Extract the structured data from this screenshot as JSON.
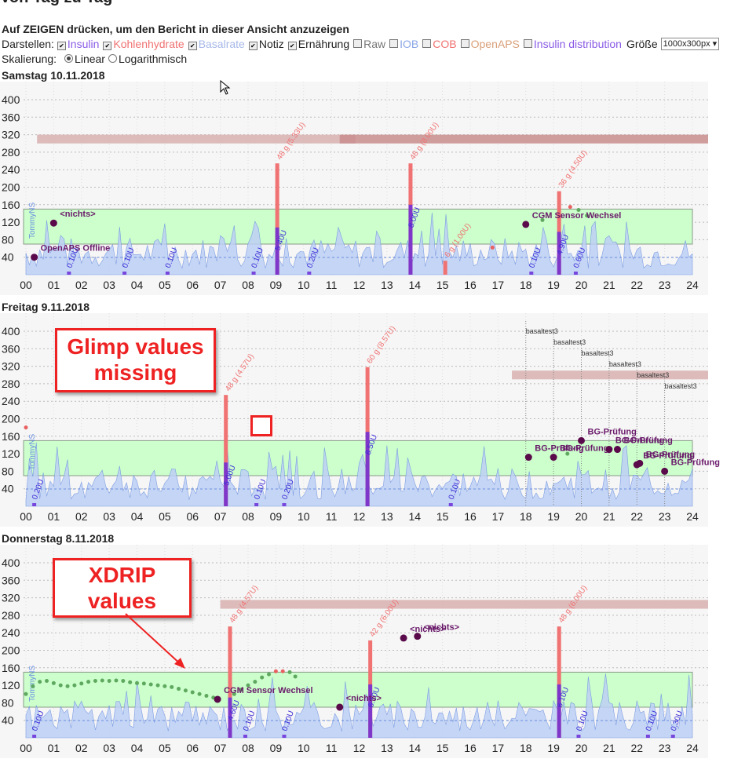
{
  "page": {
    "title": "Von Tag zu Tag",
    "hint": "Auf ZEIGEN drücken, um den Bericht in dieser Ansicht anzuzeigen"
  },
  "controls": {
    "display_label": "Darstellen:",
    "options": [
      {
        "label": "Insulin",
        "checked": true,
        "color": "#8a5ce6"
      },
      {
        "label": "Kohlenhydrate",
        "checked": true,
        "color": "#f07272"
      },
      {
        "label": "Basalrate",
        "checked": true,
        "color": "#a7b8e8"
      },
      {
        "label": "Notiz",
        "checked": true,
        "color": "#222222"
      },
      {
        "label": "Ernährung",
        "checked": true,
        "color": "#222222"
      },
      {
        "label": "Raw",
        "checked": false,
        "color": "#777777"
      },
      {
        "label": "IOB",
        "checked": false,
        "color": "#8aa6e6"
      },
      {
        "label": "COB",
        "checked": false,
        "color": "#f07272"
      },
      {
        "label": "OpenAPS",
        "checked": false,
        "color": "#d9a07a"
      },
      {
        "label": "Insulin distribution",
        "checked": false,
        "color": "#8a5ce6"
      }
    ],
    "size_label": "Größe",
    "size_value": "1000x300px",
    "scale_label": "Skalierung:",
    "scale_linear": "Linear",
    "scale_log": "Logarithmisch"
  },
  "colors": {
    "target_band": "#ccffcc",
    "target_border": "#889988",
    "carbs": "#f07272",
    "insulin": "#6a2dd8",
    "basal_fill": "#bdd0f5",
    "basal_line": "#6a8fe0",
    "temp_target": "#d8b0b0",
    "event": "#5a0a4a",
    "bg_green": "#5fa85f",
    "bg_red": "#e96060",
    "callout": "#ee2222"
  },
  "annotations": {
    "glimp": "Glimp values\nmissing",
    "xdrip": "XDRIP\nvalues"
  },
  "chart_data": [
    {
      "type": "line",
      "title": "Samstag 10.11.2018",
      "ylim": [
        0,
        400
      ],
      "yticks": [
        40,
        80,
        120,
        160,
        200,
        240,
        280,
        320,
        360,
        400
      ],
      "xticks": [
        "00",
        "01",
        "02",
        "03",
        "04",
        "05",
        "06",
        "07",
        "08",
        "09",
        "10",
        "11",
        "12",
        "13",
        "14",
        "15",
        "16",
        "17",
        "18",
        "19",
        "20",
        "21",
        "22",
        "23",
        "24"
      ],
      "target_range": [
        70,
        150
      ],
      "temp_targets": [
        {
          "from": 0.4,
          "to": 11.3,
          "value": 310,
          "shade": "light"
        },
        {
          "from": 11.3,
          "to": 24,
          "value": 310,
          "shade": "dark"
        }
      ],
      "carbs": [
        {
          "hour": 9.05,
          "grams": 48,
          "label": "48 g (5.33U)"
        },
        {
          "hour": 13.85,
          "grams": 48,
          "label": "48 g (8.00U)"
        },
        {
          "hour": 15.1,
          "grams": 6,
          "label": "6 g (1.00U)"
        },
        {
          "hour": 19.2,
          "grams": 36,
          "label": "36 g (4.50U)"
        }
      ],
      "boluses": [
        {
          "hour": 9.05,
          "units": 5.4,
          "label": "5.40U"
        },
        {
          "hour": 13.85,
          "units": 8.0,
          "label": "8.00U"
        },
        {
          "hour": 19.2,
          "units": 4.9,
          "label": "4.90U"
        },
        {
          "hour": 19.8,
          "units": 0.6,
          "label": "0.60U"
        },
        {
          "hour": 1.55,
          "units": 0.1,
          "label": "0.10U"
        },
        {
          "hour": 3.55,
          "units": 0.1,
          "label": "0.10U"
        },
        {
          "hour": 5.1,
          "units": 0.1,
          "label": "0.10U"
        },
        {
          "hour": 8.2,
          "units": 0.1,
          "label": "0.10U"
        },
        {
          "hour": 10.2,
          "units": 0.2,
          "label": "0.20U"
        },
        {
          "hour": 18.2,
          "units": 0.1,
          "label": "0.10U"
        }
      ],
      "events": [
        {
          "hour": 0.3,
          "value": 40,
          "label": "OpenAPS Offline"
        },
        {
          "hour": 1.0,
          "value": 118,
          "label": "<nichts>"
        },
        {
          "hour": 18.0,
          "value": 115,
          "label": "CGM Sensor Wechsel"
        }
      ],
      "bg_points": [
        {
          "hour": 16.8,
          "value": 62
        },
        {
          "hour": 19.6,
          "value": 155
        },
        {
          "hour": 19.9,
          "value": 148
        },
        {
          "hour": 20.2,
          "value": 135
        },
        {
          "hour": 18.6,
          "value": 125
        }
      ],
      "basal_rate_label": "TommyNS",
      "notes": []
    },
    {
      "type": "line",
      "title": "Freitag 9.11.2018",
      "ylim": [
        0,
        400
      ],
      "yticks": [
        40,
        80,
        120,
        160,
        200,
        240,
        280,
        320,
        360,
        400
      ],
      "xticks": [
        "00",
        "01",
        "02",
        "03",
        "04",
        "05",
        "06",
        "07",
        "08",
        "09",
        "10",
        "11",
        "12",
        "13",
        "14",
        "15",
        "16",
        "17",
        "18",
        "19",
        "20",
        "21",
        "22",
        "23",
        "24"
      ],
      "target_range": [
        70,
        150
      ],
      "temp_targets": [
        {
          "from": 17.5,
          "to": 24,
          "value": 300,
          "shade": "light"
        }
      ],
      "carbs": [
        {
          "hour": 7.2,
          "grams": 48,
          "label": "48 g (4.57U)"
        },
        {
          "hour": 12.3,
          "grams": 60,
          "label": "60 g (8.57U)"
        }
      ],
      "boluses": [
        {
          "hour": 7.2,
          "units": 5.0,
          "label": "5.00U"
        },
        {
          "hour": 12.3,
          "units": 8.5,
          "label": "8.50U"
        },
        {
          "hour": 0.3,
          "units": 0.2,
          "label": "0.20U"
        },
        {
          "hour": 8.3,
          "units": 0.1,
          "label": "0.10U"
        },
        {
          "hour": 9.3,
          "units": 0.2,
          "label": "0.20U"
        },
        {
          "hour": 15.3,
          "units": 0.1,
          "label": "0.10U"
        }
      ],
      "events": [
        {
          "hour": 18.1,
          "value": 112,
          "label": "BG-Prüfung"
        },
        {
          "hour": 19.0,
          "value": 112,
          "label": "BG-Prüfung"
        },
        {
          "hour": 20.0,
          "value": 150,
          "label": "BG-Prüfung"
        },
        {
          "hour": 21.0,
          "value": 130,
          "label": "BG-Prüfung"
        },
        {
          "hour": 21.3,
          "value": 130,
          "label": "BG-Prüfung"
        },
        {
          "hour": 22.0,
          "value": 95,
          "label": "BG-Prüfung"
        },
        {
          "hour": 22.1,
          "value": 98,
          "label": "BG-Prüfung"
        },
        {
          "hour": 23.0,
          "value": 80,
          "label": "BG-Prüfung"
        }
      ],
      "bg_points": [
        {
          "hour": 0.0,
          "value": 180
        },
        {
          "hour": 19.5,
          "value": 120
        }
      ],
      "basal_rate_label": "TommyNS",
      "notes": [
        {
          "hour": 18.0,
          "label": "basaltest3"
        },
        {
          "hour": 19.0,
          "label": "basaltest3"
        },
        {
          "hour": 20.0,
          "label": "basaltest3"
        },
        {
          "hour": 21.0,
          "label": "basaltest3"
        },
        {
          "hour": 22.0,
          "label": "basaltest3"
        },
        {
          "hour": 23.0,
          "label": "basaltest3"
        }
      ]
    },
    {
      "type": "line",
      "title": "Donnerstag 8.11.2018",
      "ylim": [
        0,
        400
      ],
      "yticks": [
        40,
        80,
        120,
        160,
        200,
        240,
        280,
        320,
        360,
        400
      ],
      "xticks": [
        "00",
        "01",
        "02",
        "03",
        "04",
        "05",
        "06",
        "07",
        "08",
        "09",
        "10",
        "11",
        "12",
        "13",
        "14",
        "15",
        "16",
        "17",
        "18",
        "19",
        "20",
        "21",
        "22",
        "23",
        "24"
      ],
      "target_range": [
        70,
        150
      ],
      "temp_targets": [
        {
          "from": 7.0,
          "to": 24,
          "value": 305,
          "shade": "light"
        }
      ],
      "carbs": [
        {
          "hour": 7.35,
          "grams": 48,
          "label": "48 g (4.57U)"
        },
        {
          "hour": 12.4,
          "grams": 42,
          "label": "42 g (6.00U)"
        },
        {
          "hour": 19.2,
          "grams": 48,
          "label": "48 g (6.00U)"
        }
      ],
      "boluses": [
        {
          "hour": 7.35,
          "units": 4.6,
          "label": "4.60U"
        },
        {
          "hour": 12.4,
          "units": 6.1,
          "label": "6.10U"
        },
        {
          "hour": 19.2,
          "units": 6.1,
          "label": "6.10U"
        },
        {
          "hour": 0.3,
          "units": 0.1,
          "label": "0.10U"
        },
        {
          "hour": 7.9,
          "units": 0.1,
          "label": "0.10U"
        },
        {
          "hour": 9.3,
          "units": 0.1,
          "label": "0.10U"
        },
        {
          "hour": 19.9,
          "units": 0.1,
          "label": "0.10U"
        },
        {
          "hour": 22.4,
          "units": 0.1,
          "label": "0.10U"
        },
        {
          "hour": 23.3,
          "units": 0.3,
          "label": "0.30U"
        }
      ],
      "events": [
        {
          "hour": 6.9,
          "value": 88,
          "label": "CGM Sensor Wechsel"
        },
        {
          "hour": 11.3,
          "value": 70,
          "label": "<nichts>"
        },
        {
          "hour": 13.6,
          "value": 228,
          "label": "<nichts>"
        },
        {
          "hour": 14.1,
          "value": 232,
          "label": "<nichts>"
        }
      ],
      "bg_points": [
        {
          "hour": 0.0,
          "value": 100
        },
        {
          "hour": 0.25,
          "value": 118
        },
        {
          "hour": 0.5,
          "value": 128
        },
        {
          "hour": 0.75,
          "value": 130
        },
        {
          "hour": 1.0,
          "value": 125
        },
        {
          "hour": 1.25,
          "value": 120
        },
        {
          "hour": 1.5,
          "value": 118
        },
        {
          "hour": 1.75,
          "value": 120
        },
        {
          "hour": 2.0,
          "value": 124
        },
        {
          "hour": 2.25,
          "value": 128
        },
        {
          "hour": 2.5,
          "value": 130
        },
        {
          "hour": 2.75,
          "value": 131
        },
        {
          "hour": 3.0,
          "value": 130
        },
        {
          "hour": 3.25,
          "value": 131
        },
        {
          "hour": 3.5,
          "value": 130
        },
        {
          "hour": 3.75,
          "value": 127
        },
        {
          "hour": 4.0,
          "value": 125
        },
        {
          "hour": 4.25,
          "value": 124
        },
        {
          "hour": 4.5,
          "value": 122
        },
        {
          "hour": 4.75,
          "value": 120
        },
        {
          "hour": 5.0,
          "value": 118
        },
        {
          "hour": 5.25,
          "value": 116
        },
        {
          "hour": 5.5,
          "value": 112
        },
        {
          "hour": 5.75,
          "value": 108
        },
        {
          "hour": 6.0,
          "value": 104
        },
        {
          "hour": 6.25,
          "value": 100
        },
        {
          "hour": 6.5,
          "value": 96
        },
        {
          "hour": 6.75,
          "value": 92
        },
        {
          "hour": 7.5,
          "value": 100
        },
        {
          "hour": 7.75,
          "value": 110
        },
        {
          "hour": 8.0,
          "value": 120
        },
        {
          "hour": 8.25,
          "value": 128
        },
        {
          "hour": 8.5,
          "value": 138
        },
        {
          "hour": 8.75,
          "value": 145
        },
        {
          "hour": 9.0,
          "value": 152
        },
        {
          "hour": 9.25,
          "value": 152
        },
        {
          "hour": 9.5,
          "value": 150
        },
        {
          "hour": 9.7,
          "value": 140
        }
      ],
      "basal_rate_label": "TommyNS",
      "notes": []
    }
  ]
}
